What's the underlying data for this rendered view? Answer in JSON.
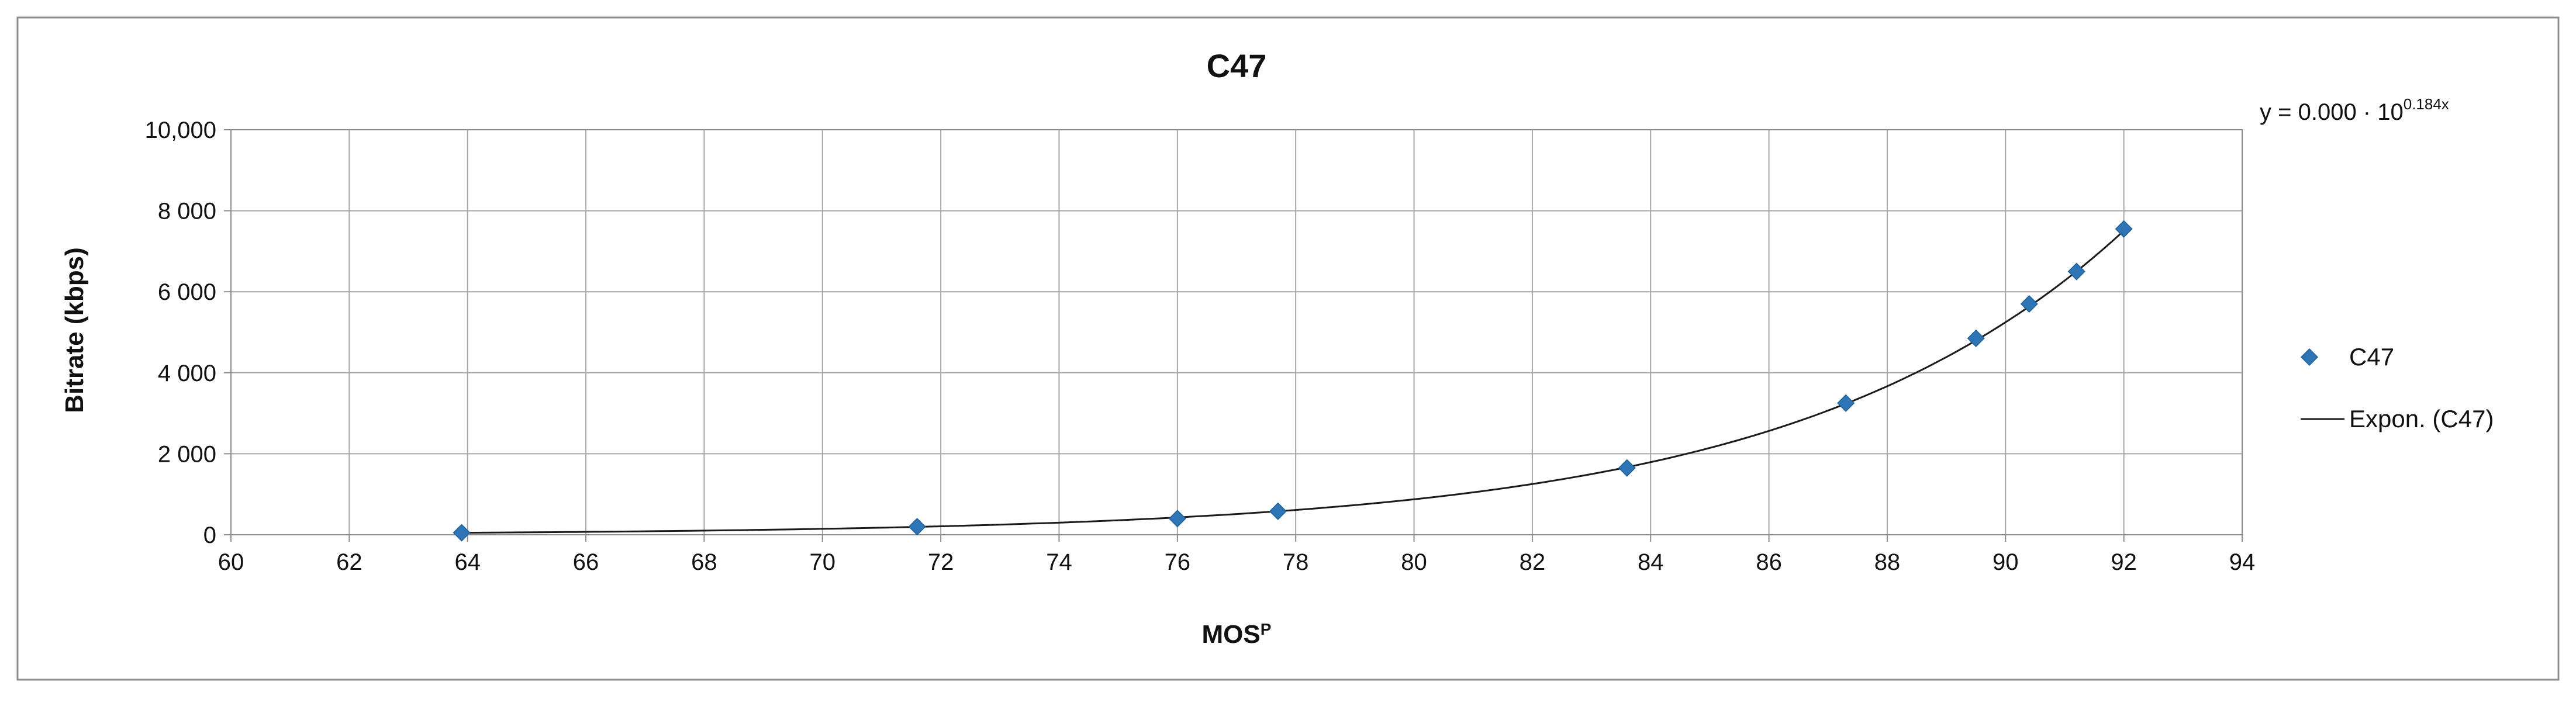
{
  "chart_data": {
    "type": "scatter",
    "title": "C47",
    "xlabel": "MOS",
    "xlabel_superscript": "P",
    "ylabel": "Bitrate (kbps)",
    "xlim": [
      60,
      94
    ],
    "ylim": [
      0,
      10000
    ],
    "x_ticks": [
      60,
      62,
      64,
      66,
      68,
      70,
      72,
      74,
      76,
      78,
      80,
      82,
      84,
      86,
      88,
      90,
      92,
      94
    ],
    "y_ticks": [
      0,
      2000,
      4000,
      6000,
      8000,
      10000
    ],
    "x_tick_labels": [
      "60",
      "62",
      "64",
      "66",
      "68",
      "70",
      "72",
      "74",
      "76",
      "78",
      "80",
      "82",
      "84",
      "86",
      "88",
      "90",
      "92",
      "94"
    ],
    "y_tick_labels": [
      "0",
      "2 000",
      "4 000",
      "6 000",
      "8 000",
      "10,000"
    ],
    "grid": true,
    "legend_position": "right",
    "series": [
      {
        "name": "C47",
        "marker": "diamond",
        "color": "#2E75B6",
        "x": [
          63.9,
          71.6,
          76.0,
          77.7,
          83.6,
          87.3,
          89.5,
          90.4,
          91.2,
          92.0
        ],
        "y": [
          50,
          200,
          400,
          580,
          1650,
          3250,
          4850,
          5700,
          6500,
          7550
        ]
      }
    ],
    "trendline": {
      "name": "Expon. (C47)",
      "type": "exponential",
      "color": "#1a1a1a",
      "equation_main": "y = 0.000 · 10",
      "equation_exponent": "0.184x",
      "x_range": [
        63.9,
        92.0
      ]
    }
  }
}
